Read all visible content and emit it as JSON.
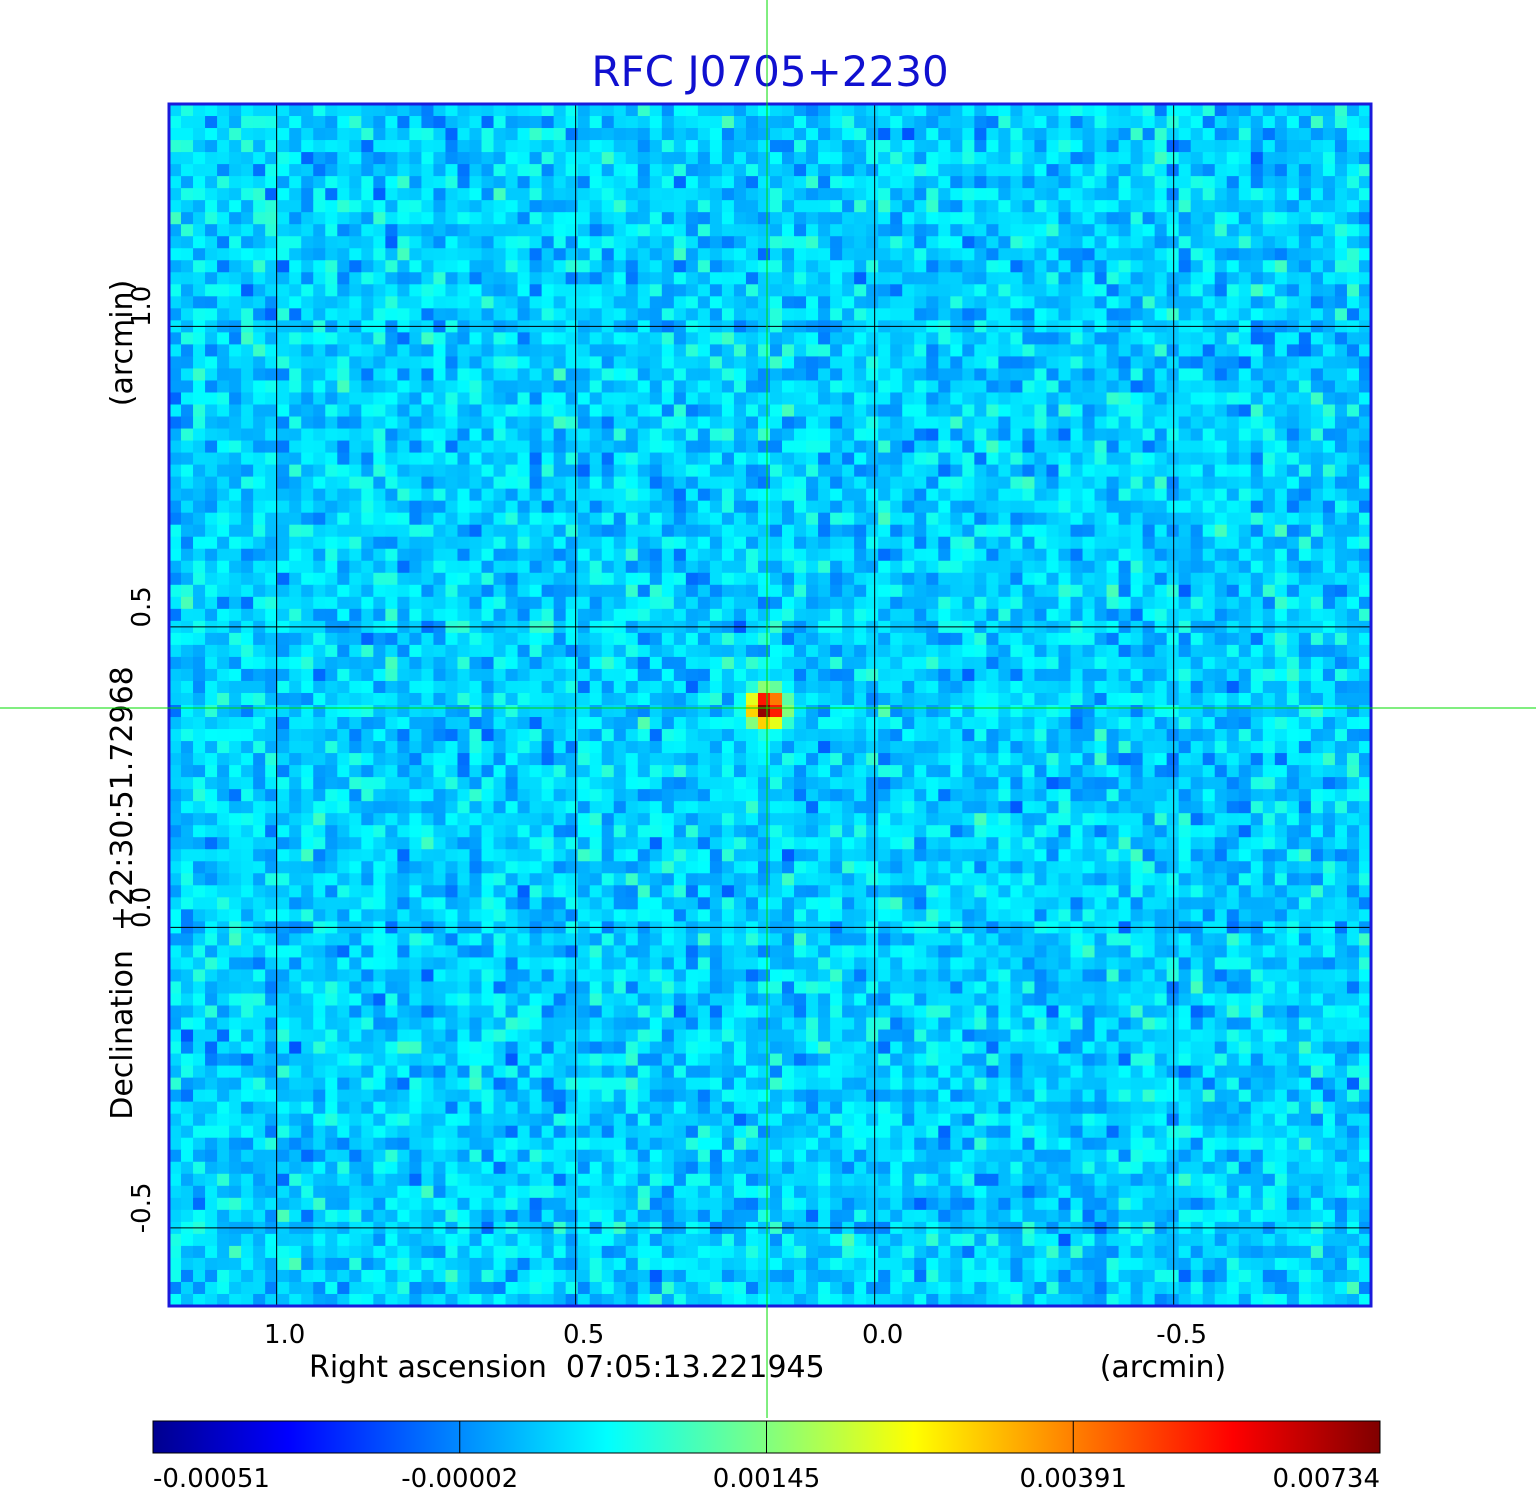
{
  "chart_data": {
    "type": "heatmap",
    "title": "RFC J0705+2230",
    "xlabel": "Right ascension  07:05:13.221945",
    "xunit": "(arcmin)",
    "ylabel": "Declination  +22:30:51.72968",
    "yunit": "(arcmin)",
    "xlim": [
      1.18,
      -0.83
    ],
    "ylim": [
      -0.63,
      1.37
    ],
    "x_ticks": [
      {
        "value": 1.0,
        "label": "1.0"
      },
      {
        "value": 0.5,
        "label": "0.5"
      },
      {
        "value": 0.0,
        "label": "0.0"
      },
      {
        "value": -0.5,
        "label": "-0.5"
      }
    ],
    "y_ticks": [
      {
        "value": -0.5,
        "label": "-0.5"
      },
      {
        "value": 0.0,
        "label": "0.0"
      },
      {
        "value": 0.5,
        "label": "0.5"
      },
      {
        "value": 1.0,
        "label": "1.0"
      }
    ],
    "grid": true,
    "crosshair": {
      "x": 0.18,
      "y": 0.365,
      "color": "#00dd00"
    },
    "peak": {
      "x": 0.18,
      "y": 0.365,
      "value": 0.00734
    },
    "colormap": "jet",
    "colorbar": {
      "position": "bottom",
      "ticks": [
        {
          "value": -0.00051,
          "label": "-0.00051"
        },
        {
          "value": -2e-05,
          "label": "-0.00002"
        },
        {
          "value": 0.00145,
          "label": "0.00145"
        },
        {
          "value": 0.00391,
          "label": "0.00391"
        },
        {
          "value": 0.00734,
          "label": "0.00734"
        }
      ]
    },
    "colors": {
      "title": "#1010d0",
      "frame": "#1a1adc",
      "grid": "#000000",
      "crosshair": "#00dd00"
    }
  }
}
